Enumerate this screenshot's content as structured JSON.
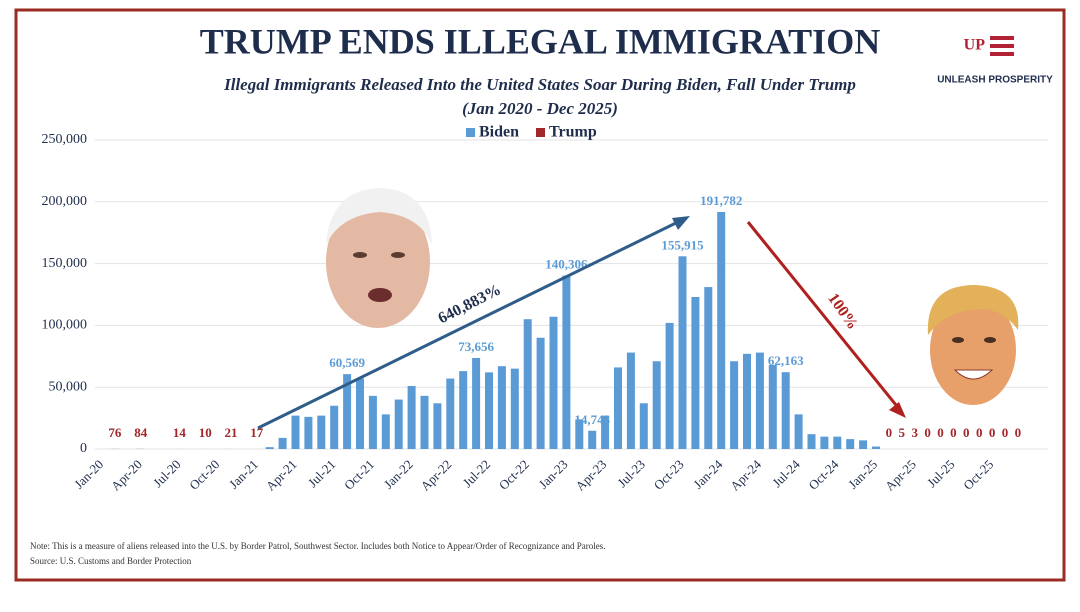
{
  "chart_data": {
    "type": "bar",
    "title": "TRUMP ENDS ILLEGAL IMMIGRATION",
    "subtitle": "Illegal Immigrants Released Into the United States Soar During Biden, Fall Under Trump",
    "date_range": "(Jan 2020 - Dec 2025)",
    "logo_mark": "UP",
    "logo_text": "UNLEASH PROSPERITY",
    "categories": [
      "Jan-20",
      null,
      null,
      "Apr-20",
      null,
      null,
      "Jul-20",
      null,
      null,
      "Oct-20",
      null,
      null,
      "Jan-21",
      null,
      null,
      "Apr-21",
      null,
      null,
      "Jul-21",
      null,
      null,
      "Oct-21",
      null,
      null,
      "Jan-22",
      null,
      null,
      "Apr-22",
      null,
      null,
      "Jul-22",
      null,
      null,
      "Oct-22",
      null,
      null,
      "Jan-23",
      null,
      null,
      "Apr-23",
      null,
      null,
      "Jul-23",
      null,
      null,
      "Oct-23",
      null,
      null,
      "Jan-24",
      null,
      null,
      "Apr-24",
      null,
      null,
      "Jul-24",
      null,
      null,
      "Oct-24",
      null,
      null,
      "Jan-25",
      null,
      null,
      "Apr-25",
      null,
      null,
      "Jul-25",
      null,
      null,
      "Oct-25",
      null,
      null
    ],
    "series": [
      {
        "name": "Biden",
        "color": "#5b9bd5",
        "values": [
          null,
          null,
          null,
          null,
          null,
          null,
          null,
          null,
          null,
          null,
          null,
          null,
          null,
          1500,
          9000,
          27000,
          26000,
          27000,
          35000,
          60569,
          57000,
          43000,
          28000,
          40000,
          51000,
          43000,
          37000,
          57000,
          63000,
          73656,
          62000,
          67000,
          65000,
          105000,
          90000,
          107000,
          140306,
          24000,
          14743,
          27000,
          66000,
          78000,
          37000,
          71000,
          102000,
          155915,
          123000,
          131000,
          191782,
          71000,
          77000,
          78000,
          68000,
          62163,
          28000,
          12000,
          10000,
          10000,
          8000,
          7000,
          2000,
          null,
          null,
          null,
          null,
          null,
          null,
          null,
          null,
          null,
          null,
          null
        ],
        "value_labels": [
          null,
          null,
          null,
          null,
          null,
          null,
          null,
          null,
          null,
          null,
          null,
          null,
          null,
          null,
          null,
          null,
          null,
          null,
          null,
          "60,569",
          null,
          null,
          null,
          null,
          null,
          null,
          null,
          null,
          null,
          "73,656",
          null,
          null,
          null,
          null,
          null,
          null,
          "140,306",
          null,
          "14,743",
          null,
          null,
          null,
          null,
          null,
          null,
          "155,915",
          null,
          null,
          "191,782",
          null,
          null,
          null,
          null,
          "62,163",
          null,
          null,
          null,
          null,
          null,
          null,
          null,
          null,
          null,
          null,
          null,
          null,
          null,
          null,
          null,
          null,
          null,
          null
        ]
      },
      {
        "name": "Trump",
        "color": "#a3262a",
        "values": [
          null,
          76,
          null,
          84,
          null,
          null,
          14,
          null,
          10,
          null,
          21,
          null,
          17,
          null,
          null,
          null,
          null,
          null,
          null,
          null,
          null,
          null,
          null,
          null,
          null,
          null,
          null,
          null,
          null,
          null,
          null,
          null,
          null,
          null,
          null,
          null,
          null,
          null,
          null,
          null,
          null,
          null,
          null,
          null,
          null,
          null,
          null,
          null,
          null,
          null,
          null,
          null,
          null,
          null,
          null,
          null,
          null,
          null,
          null,
          null,
          null,
          0,
          5,
          3,
          0,
          0,
          0,
          0,
          0,
          0,
          0,
          0
        ]
      }
    ],
    "ylim": [
      0,
      250000
    ],
    "yticks": [
      0,
      {
        "value": 50000,
        "label": "50,000"
      },
      {
        "value": 100000,
        "label": "100,000"
      },
      {
        "value": 150000,
        "label": "150,000"
      },
      {
        "value": 200000,
        "label": "200,000"
      },
      {
        "value": 250000,
        "label": "250,000"
      }
    ],
    "grid": true,
    "annotations": [
      "640,883%",
      "100%"
    ],
    "note": "Note: This is a measure of aliens released into the U.S. by Border Patrol, Southwest Sector. Includes both Notice to Appear/Order of Recognizance and Paroles.",
    "source": "Source: U.S. Customs and Border Protection"
  }
}
